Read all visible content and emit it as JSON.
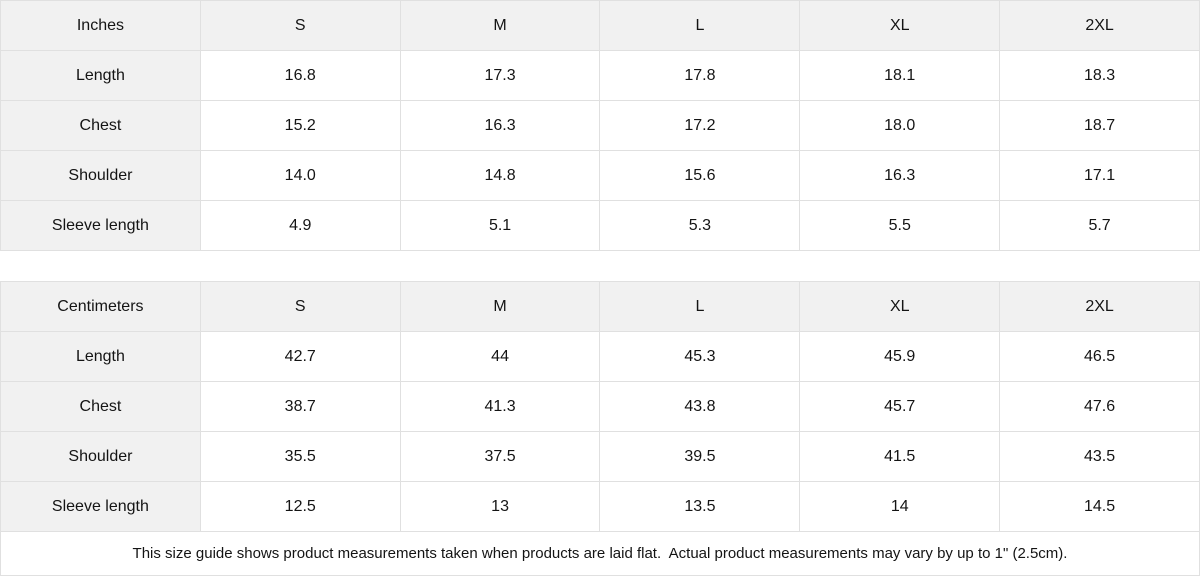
{
  "tables": [
    {
      "unit_label": "Inches",
      "sizes": [
        "S",
        "M",
        "L",
        "XL",
        "2XL"
      ],
      "rows": [
        {
          "label": "Length",
          "values": [
            "16.8",
            "17.3",
            "17.8",
            "18.1",
            "18.3"
          ]
        },
        {
          "label": "Chest",
          "values": [
            "15.2",
            "16.3",
            "17.2",
            "18.0",
            "18.7"
          ]
        },
        {
          "label": "Shoulder",
          "values": [
            "14.0",
            "14.8",
            "15.6",
            "16.3",
            "17.1"
          ]
        },
        {
          "label": "Sleeve length",
          "values": [
            "4.9",
            "5.1",
            "5.3",
            "5.5",
            "5.7"
          ]
        }
      ]
    },
    {
      "unit_label": "Centimeters",
      "sizes": [
        "S",
        "M",
        "L",
        "XL",
        "2XL"
      ],
      "rows": [
        {
          "label": "Length",
          "values": [
            "42.7",
            "44",
            "45.3",
            "45.9",
            "46.5"
          ]
        },
        {
          "label": "Chest",
          "values": [
            "38.7",
            "41.3",
            "43.8",
            "45.7",
            "47.6"
          ]
        },
        {
          "label": "Shoulder",
          "values": [
            "35.5",
            "37.5",
            "39.5",
            "41.5",
            "43.5"
          ]
        },
        {
          "label": "Sleeve length",
          "values": [
            "12.5",
            "13",
            "13.5",
            "14",
            "14.5"
          ]
        }
      ]
    }
  ],
  "footer": {
    "note": "This size guide shows product measurements taken when products are laid flat.  Actual product measurements may vary by up to 1\" (2.5cm)."
  },
  "colors": {
    "header_bg": "#f1f1f1",
    "border": "#e0e0e0",
    "text": "#141414"
  },
  "chart_data": [
    {
      "type": "table",
      "title": "Inches",
      "columns": [
        "Inches",
        "S",
        "M",
        "L",
        "XL",
        "2XL"
      ],
      "rows": [
        [
          "Length",
          16.8,
          17.3,
          17.8,
          18.1,
          18.3
        ],
        [
          "Chest",
          15.2,
          16.3,
          17.2,
          18.0,
          18.7
        ],
        [
          "Shoulder",
          14.0,
          14.8,
          15.6,
          16.3,
          17.1
        ],
        [
          "Sleeve length",
          4.9,
          5.1,
          5.3,
          5.5,
          5.7
        ]
      ]
    },
    {
      "type": "table",
      "title": "Centimeters",
      "columns": [
        "Centimeters",
        "S",
        "M",
        "L",
        "XL",
        "2XL"
      ],
      "rows": [
        [
          "Length",
          42.7,
          44,
          45.3,
          45.9,
          46.5
        ],
        [
          "Chest",
          38.7,
          41.3,
          43.8,
          45.7,
          47.6
        ],
        [
          "Shoulder",
          35.5,
          37.5,
          39.5,
          41.5,
          43.5
        ],
        [
          "Sleeve length",
          12.5,
          13,
          13.5,
          14,
          14.5
        ]
      ]
    }
  ]
}
